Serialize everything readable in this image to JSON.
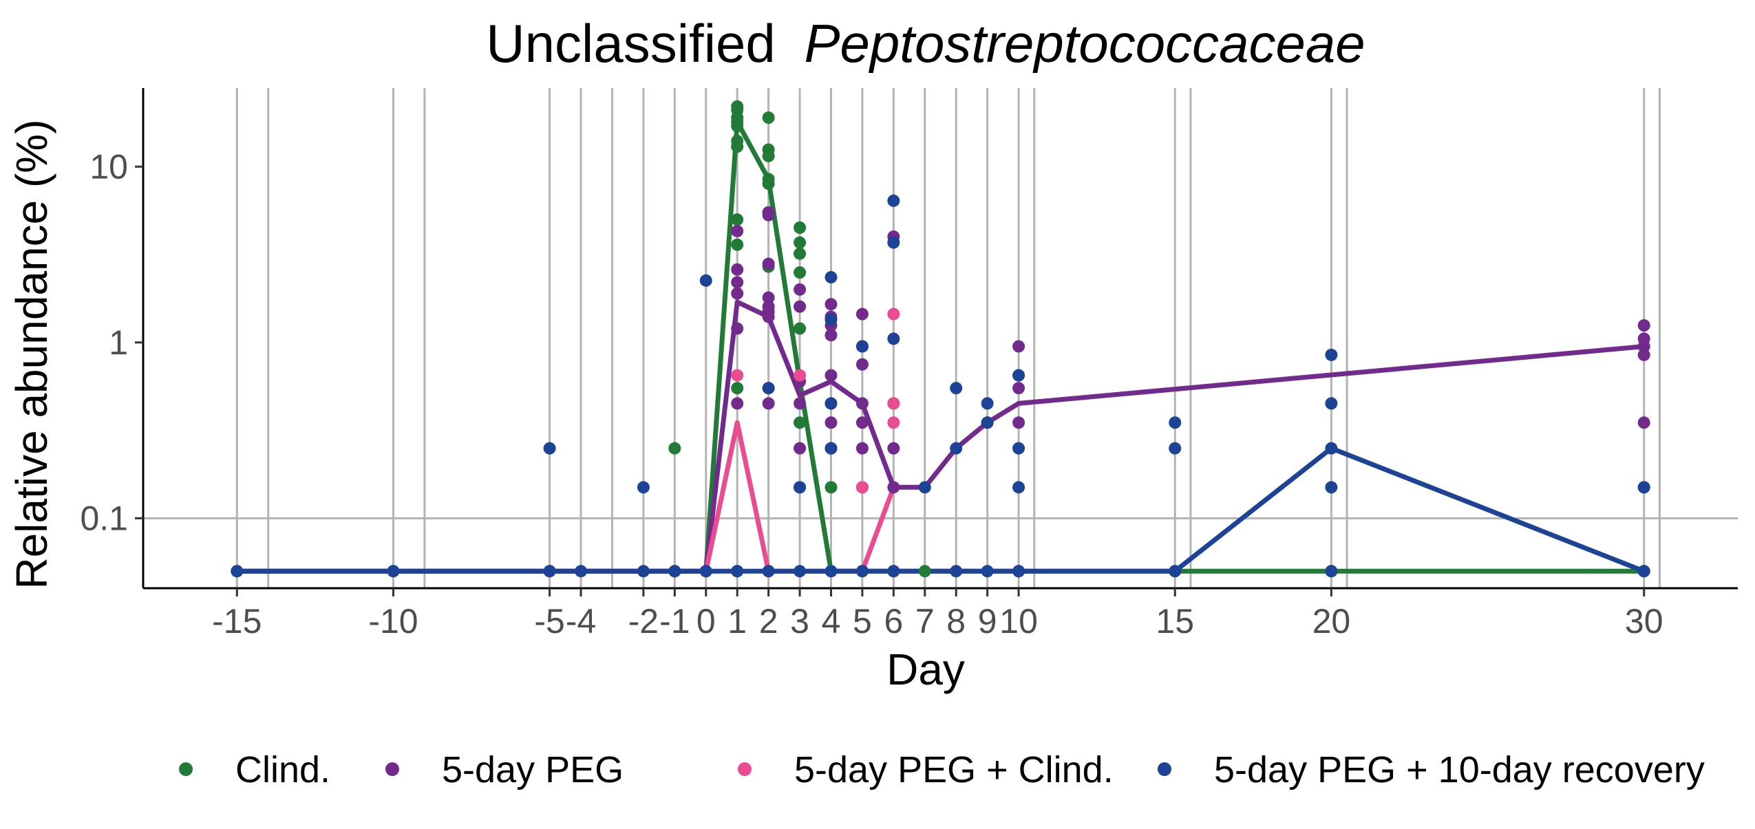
{
  "chart_data": {
    "type": "line",
    "title": "Unclassified",
    "title_italic": "Peptostreptococcaceae",
    "xlabel": "Day",
    "ylabel": "Relative abundance (%)",
    "y_scale": "log10",
    "ylim": [
      0.04,
      28
    ],
    "xlim": [
      -18,
      33
    ],
    "x_ticks": [
      -15,
      -10,
      -5,
      -4,
      -2,
      -1,
      0,
      1,
      2,
      3,
      4,
      5,
      6,
      7,
      8,
      9,
      10,
      15,
      20,
      30
    ],
    "x_tick_labels": [
      "-15",
      "-10",
      "-5",
      "-4",
      "-2",
      "-1",
      "0",
      "1",
      "2",
      "3",
      "4",
      "5",
      "6",
      "7",
      "8",
      "9",
      "10",
      "15",
      "20",
      "30"
    ],
    "x_grid": [
      -15,
      -14,
      -10,
      -9,
      -5,
      -4,
      -3,
      -2,
      -1,
      0,
      1,
      2,
      3,
      4,
      5,
      6,
      7,
      8,
      9,
      10,
      10.5,
      15,
      15.5,
      20,
      20.5,
      30,
      30.5
    ],
    "y_ticks": [
      0.1,
      1,
      10
    ],
    "y_tick_labels": [
      "0.1",
      "1",
      "10"
    ],
    "grid": true,
    "legend_position": "bottom",
    "series": [
      {
        "name": "Clind.",
        "color": "#217a35",
        "line": [
          [
            -15,
            0.05
          ],
          [
            -10,
            0.05
          ],
          [
            -5,
            0.05
          ],
          [
            -4,
            0.05
          ],
          [
            -1,
            0.05
          ],
          [
            0,
            0.05
          ],
          [
            1,
            18
          ],
          [
            2,
            8.5
          ],
          [
            3,
            0.6
          ],
          [
            4,
            0.05
          ],
          [
            5,
            0.05
          ],
          [
            6,
            0.05
          ],
          [
            7,
            0.05
          ],
          [
            10,
            0.05
          ],
          [
            15,
            0.05
          ],
          [
            20,
            0.05
          ],
          [
            30,
            0.05
          ]
        ],
        "points": [
          [
            -15,
            0.05
          ],
          [
            -10,
            0.05
          ],
          [
            -5,
            0.05
          ],
          [
            -1,
            0.05
          ],
          [
            0,
            0.05
          ],
          [
            0,
            0.05
          ],
          [
            -1,
            0.25
          ],
          [
            1,
            22
          ],
          [
            1,
            21
          ],
          [
            1,
            19
          ],
          [
            1,
            18
          ],
          [
            1,
            17
          ],
          [
            1,
            14
          ],
          [
            1,
            13
          ],
          [
            1,
            5
          ],
          [
            1,
            3.6
          ],
          [
            1,
            0.55
          ],
          [
            2,
            19
          ],
          [
            2,
            12.5
          ],
          [
            2,
            11.5
          ],
          [
            2,
            8.5
          ],
          [
            2,
            8
          ],
          [
            2,
            2.7
          ],
          [
            3,
            4.5
          ],
          [
            3,
            3.7
          ],
          [
            3,
            3.2
          ],
          [
            3,
            2.5
          ],
          [
            3,
            1.2
          ],
          [
            3,
            0.35
          ],
          [
            3,
            0.15
          ],
          [
            4,
            0.25
          ],
          [
            4,
            0.15
          ],
          [
            4,
            0.05
          ],
          [
            5,
            0.05
          ],
          [
            6,
            0.05
          ],
          [
            7,
            0.05
          ],
          [
            10,
            0.05
          ],
          [
            15,
            0.05
          ],
          [
            20,
            0.05
          ],
          [
            30,
            0.05
          ]
        ]
      },
      {
        "name": "5-day PEG",
        "color": "#722a8c",
        "line": [
          [
            -15,
            0.05
          ],
          [
            -10,
            0.05
          ],
          [
            -5,
            0.05
          ],
          [
            -4,
            0.05
          ],
          [
            -1,
            0.05
          ],
          [
            0,
            0.05
          ],
          [
            1,
            1.7
          ],
          [
            2,
            1.4
          ],
          [
            3,
            0.5
          ],
          [
            4,
            0.6
          ],
          [
            5,
            0.45
          ],
          [
            6,
            0.15
          ],
          [
            7,
            0.15
          ],
          [
            8,
            0.25
          ],
          [
            9,
            0.35
          ],
          [
            10,
            0.45
          ],
          [
            30,
            0.95
          ]
        ],
        "points": [
          [
            -5,
            0.05
          ],
          [
            -1,
            0.05
          ],
          [
            0,
            0.05
          ],
          [
            1,
            4.3
          ],
          [
            1,
            2.6
          ],
          [
            1,
            2.2
          ],
          [
            1,
            1.9
          ],
          [
            1,
            1.2
          ],
          [
            1,
            0.45
          ],
          [
            1,
            0.05
          ],
          [
            2,
            5.5
          ],
          [
            2,
            5.3
          ],
          [
            2,
            2.8
          ],
          [
            2,
            1.8
          ],
          [
            2,
            1.6
          ],
          [
            2,
            1.5
          ],
          [
            2,
            1.4
          ],
          [
            2,
            0.55
          ],
          [
            2,
            0.45
          ],
          [
            2,
            0.05
          ],
          [
            3,
            2.0
          ],
          [
            3,
            1.6
          ],
          [
            3,
            0.6
          ],
          [
            3,
            0.45
          ],
          [
            3,
            0.25
          ],
          [
            3,
            0.15
          ],
          [
            4,
            1.65
          ],
          [
            4,
            1.4
          ],
          [
            4,
            1.25
          ],
          [
            4,
            1.1
          ],
          [
            4,
            0.65
          ],
          [
            4,
            0.45
          ],
          [
            4,
            0.35
          ],
          [
            4,
            0.25
          ],
          [
            5,
            1.45
          ],
          [
            5,
            0.95
          ],
          [
            5,
            0.75
          ],
          [
            5,
            0.45
          ],
          [
            5,
            0.35
          ],
          [
            5,
            0.25
          ],
          [
            5,
            0.15
          ],
          [
            6,
            4.0
          ],
          [
            6,
            0.45
          ],
          [
            6,
            0.25
          ],
          [
            6,
            0.15
          ],
          [
            6,
            0.05
          ],
          [
            9,
            0.35
          ],
          [
            10,
            0.95
          ],
          [
            10,
            0.65
          ],
          [
            10,
            0.55
          ],
          [
            10,
            0.35
          ],
          [
            10,
            0.05
          ],
          [
            30,
            1.25
          ],
          [
            30,
            1.05
          ],
          [
            30,
            0.95
          ],
          [
            30,
            0.85
          ],
          [
            30,
            0.35
          ],
          [
            30,
            0.15
          ],
          [
            30,
            0.05
          ]
        ]
      },
      {
        "name": "5-day PEG + Clind.",
        "color": "#ea4c92",
        "line": [
          [
            -5,
            0.05
          ],
          [
            -4,
            0.05
          ],
          [
            -1,
            0.05
          ],
          [
            0,
            0.05
          ],
          [
            1,
            0.35
          ],
          [
            2,
            0.05
          ],
          [
            3,
            0.05
          ],
          [
            4,
            0.05
          ],
          [
            5,
            0.05
          ],
          [
            6,
            0.15
          ]
        ],
        "points": [
          [
            -5,
            0.05
          ],
          [
            0,
            0.05
          ],
          [
            1,
            0.65
          ],
          [
            3,
            0.65
          ],
          [
            5,
            0.15
          ],
          [
            6,
            1.45
          ],
          [
            6,
            0.45
          ],
          [
            6,
            0.35
          ],
          [
            6,
            0.05
          ]
        ]
      },
      {
        "name": "5-day PEG + 10-day recovery",
        "color": "#1c4395",
        "line": [
          [
            -15,
            0.05
          ],
          [
            -10,
            0.05
          ],
          [
            -5,
            0.05
          ],
          [
            -4,
            0.05
          ],
          [
            -2,
            0.05
          ],
          [
            -1,
            0.05
          ],
          [
            0,
            0.05
          ],
          [
            1,
            0.05
          ],
          [
            2,
            0.05
          ],
          [
            3,
            0.05
          ],
          [
            4,
            0.05
          ],
          [
            5,
            0.05
          ],
          [
            6,
            0.05
          ],
          [
            7,
            0.05
          ],
          [
            8,
            0.05
          ],
          [
            9,
            0.05
          ],
          [
            10,
            0.05
          ],
          [
            15,
            0.05
          ],
          [
            20,
            0.25
          ],
          [
            30,
            0.05
          ]
        ],
        "points": [
          [
            -15,
            0.05
          ],
          [
            -10,
            0.05
          ],
          [
            -5,
            0.25
          ],
          [
            -5,
            0.05
          ],
          [
            -4,
            0.05
          ],
          [
            -2,
            0.15
          ],
          [
            -2,
            0.05
          ],
          [
            -1,
            0.05
          ],
          [
            0,
            2.25
          ],
          [
            0,
            0.05
          ],
          [
            1,
            0.05
          ],
          [
            2,
            0.55
          ],
          [
            2,
            0.05
          ],
          [
            3,
            0.15
          ],
          [
            3,
            0.05
          ],
          [
            4,
            2.35
          ],
          [
            4,
            1.35
          ],
          [
            4,
            0.45
          ],
          [
            4,
            0.25
          ],
          [
            4,
            0.05
          ],
          [
            5,
            0.95
          ],
          [
            5,
            0.05
          ],
          [
            6,
            6.4
          ],
          [
            6,
            3.7
          ],
          [
            6,
            1.05
          ],
          [
            6,
            0.05
          ],
          [
            7,
            0.15
          ],
          [
            8,
            0.55
          ],
          [
            8,
            0.25
          ],
          [
            8,
            0.05
          ],
          [
            9,
            0.45
          ],
          [
            9,
            0.35
          ],
          [
            9,
            0.05
          ],
          [
            10,
            0.65
          ],
          [
            10,
            0.25
          ],
          [
            10,
            0.15
          ],
          [
            10,
            0.05
          ],
          [
            15,
            0.35
          ],
          [
            15,
            0.25
          ],
          [
            15,
            0.05
          ],
          [
            20,
            0.85
          ],
          [
            20,
            0.45
          ],
          [
            20,
            0.25
          ],
          [
            20,
            0.15
          ],
          [
            20,
            0.05
          ],
          [
            30,
            0.15
          ],
          [
            30,
            0.05
          ]
        ]
      }
    ]
  }
}
